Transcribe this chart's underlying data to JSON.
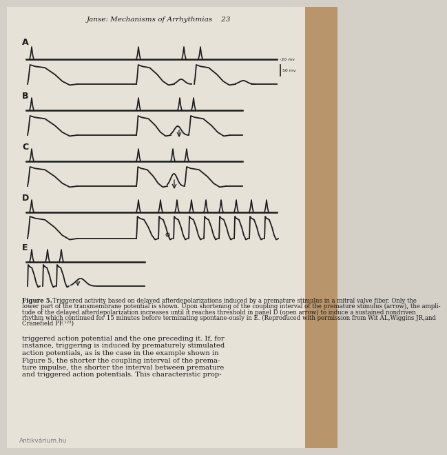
{
  "title": "Janse: Mechanisms of Arrhythmias",
  "page_number": "23",
  "bg_color": "#d4d0c8",
  "paper_color": "#e6e2d8",
  "wood_color": "#b8956a",
  "line_color": "#1a1a1a",
  "panel_labels": [
    "A",
    "B",
    "C",
    "D",
    "E"
  ],
  "scale_bar_label_top": "-20 mv",
  "scale_bar_label_right": "50 mv",
  "caption_lines": [
    "Figure 5.   Triggered activity based on delayed afterdepolarizations induced by a premature stimulus in a mitral valve fiber. Only the",
    "lower part of the transmembrane potential is shown. Upon shortening of the coupling interval of the premature stimulus (arrow), the ampli-",
    "tude of the delayed afterdepolarization increases until it reaches threshold in panel D (open arrow) to induce a sustained nondriven",
    "rhythm which continued for 15 minutes before terminating spontane-ously in E. (Reproduced with permission from Wit AL,Wiggins JR,and",
    "Cranefield PF.¹²³)"
  ],
  "body_lines": [
    "triggered action potential and the one preceding it. If, for",
    "instance, triggering is induced by prematurely stimulated",
    "action potentials, as is the case in the example shown in",
    "Figure 5, the shorter the coupling interval of the prema-",
    "ture impulse, the shorter the interval between premature",
    "and triggered action potentials. This characteristic prop-"
  ]
}
